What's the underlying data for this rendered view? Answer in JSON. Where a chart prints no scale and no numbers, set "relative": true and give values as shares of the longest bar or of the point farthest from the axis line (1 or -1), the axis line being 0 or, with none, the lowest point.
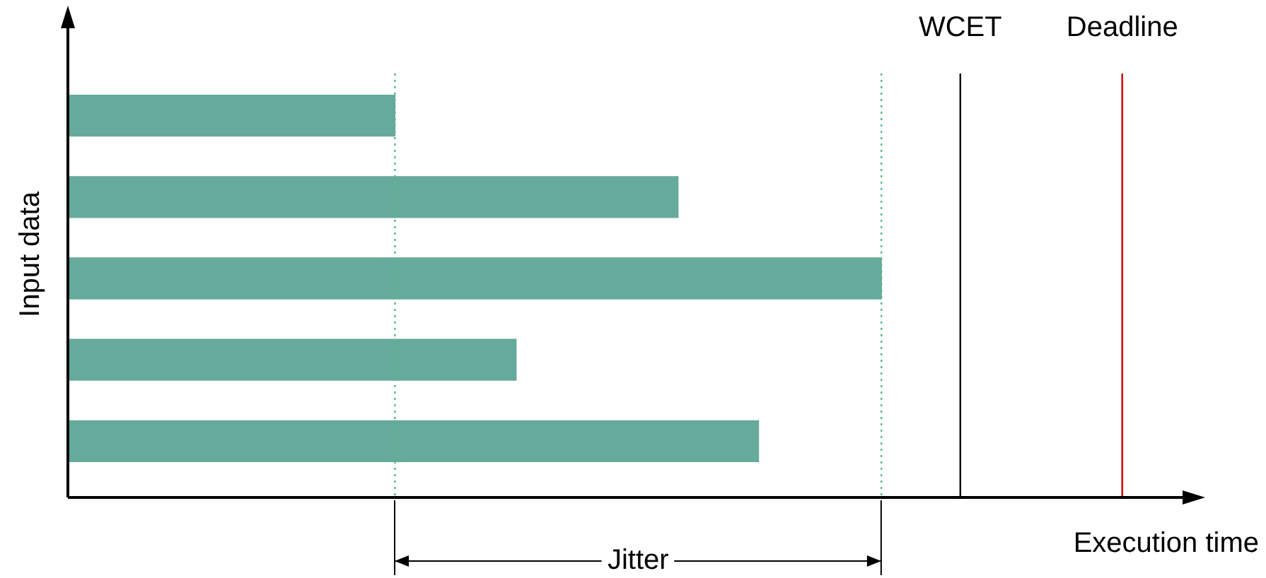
{
  "chart_data": {
    "type": "bar",
    "orientation": "horizontal",
    "relative": true,
    "ylabel": "Input data",
    "categories": [
      null,
      null,
      null,
      null,
      null
    ],
    "values": [
      0.402,
      0.75,
      1,
      0.551,
      0.849
    ],
    "color": "#66aa9b",
    "ref_lines": [
      {
        "axis": "x",
        "value": 0.402,
        "color": "#55bb88",
        "line_style": "dotted"
      },
      {
        "axis": "x",
        "value": 1,
        "color": "#55bb88",
        "line_style": "dotted"
      },
      {
        "axis": "x",
        "value": 1.097,
        "label": "WCET",
        "color": "#000000"
      },
      {
        "axis": "x",
        "value": 1.296,
        "label": "Deadline",
        "color": "#cc0000"
      }
    ],
    "annotations": [
      "Jitter",
      "Execution time"
    ],
    "legend": false
  }
}
